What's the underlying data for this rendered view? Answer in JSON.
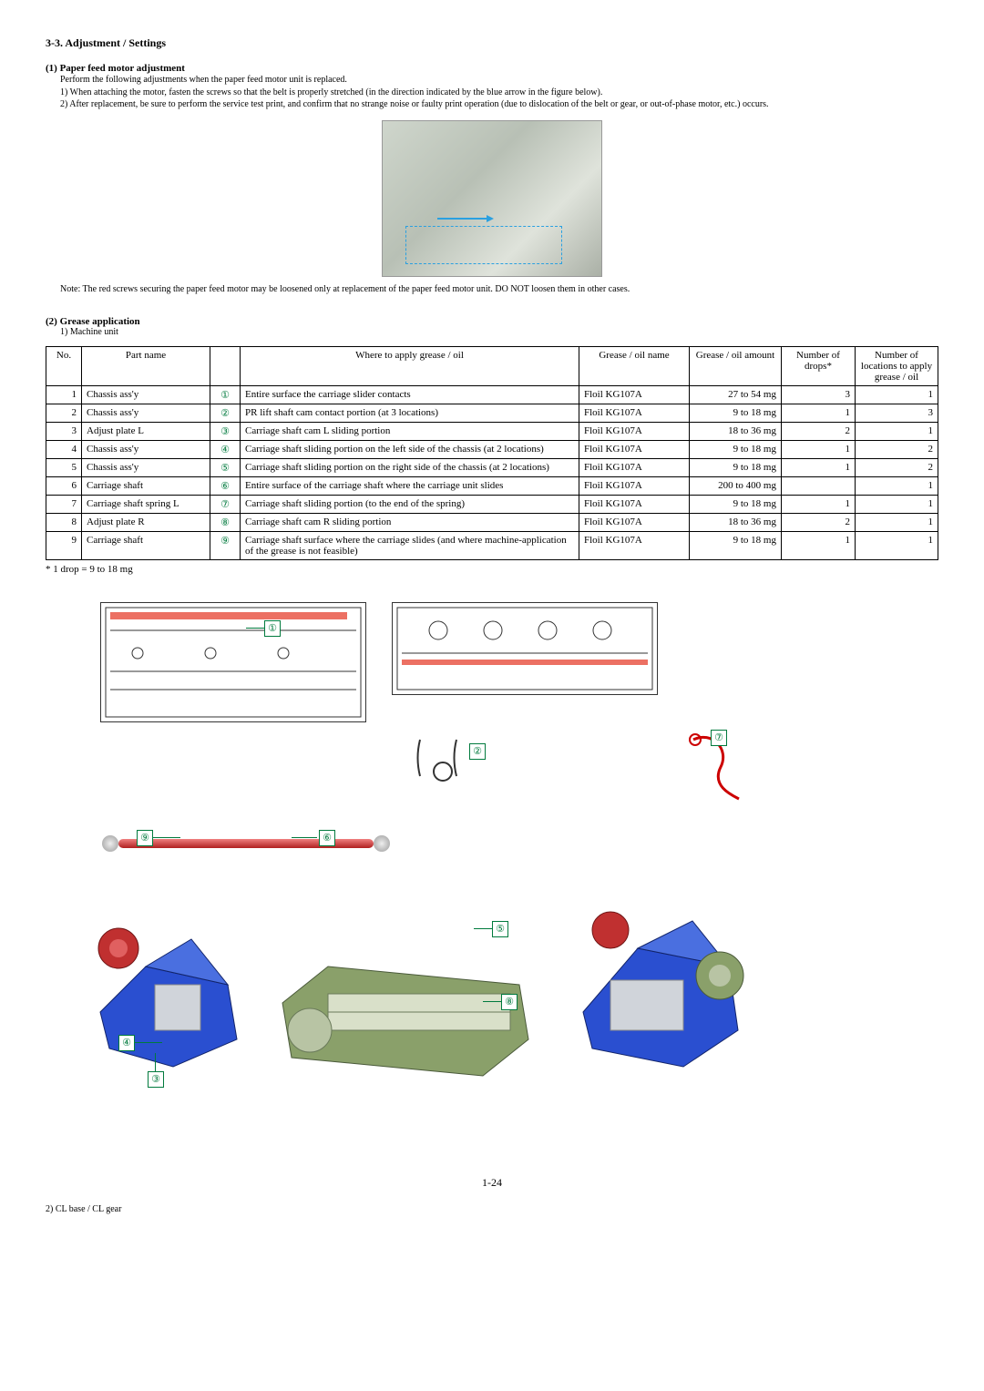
{
  "section_title": "3-3.  Adjustment / Settings",
  "sub1": {
    "title": "(1)  Paper feed motor adjustment",
    "intro": "Perform the following adjustments when the paper feed motor unit is replaced.",
    "l1": "1)  When attaching the motor, fasten the screws so that the belt is properly stretched (in the direction indicated by the blue arrow in the figure below).",
    "l2": "2)  After replacement, be sure to perform the service test print, and confirm that no strange noise or faulty print operation (due to dislocation of the belt or gear, or out-of-phase motor, etc.) occurs.",
    "note": "Note:  The red screws securing the paper feed motor may be loosened only at replacement of the paper feed motor unit. DO NOT loosen them in other cases."
  },
  "sub2": {
    "title": "(2)  Grease application",
    "mini": "1)  Machine unit"
  },
  "table": {
    "headers": {
      "no": "No.",
      "part": "Part name",
      "mark": "",
      "where": "Where to apply grease / oil",
      "name": "Grease / oil name",
      "amt": "Grease / oil amount",
      "drops": "Number of drops*",
      "locs": "Number of locations to apply grease / oil"
    },
    "rows": [
      {
        "no": "1",
        "part": "Chassis ass'y",
        "mark": "①",
        "where": "Entire surface the carriage slider contacts",
        "name": "Floil KG107A",
        "amt": "27 to 54 mg",
        "drops": "3",
        "locs": "1"
      },
      {
        "no": "2",
        "part": "Chassis ass'y",
        "mark": "②",
        "where": "PR lift shaft cam contact portion (at 3 locations)",
        "name": "Floil KG107A",
        "amt": "9 to 18 mg",
        "drops": "1",
        "locs": "3"
      },
      {
        "no": "3",
        "part": "Adjust plate L",
        "mark": "③",
        "where": "Carriage shaft cam L sliding portion",
        "name": "Floil KG107A",
        "amt": "18 to 36 mg",
        "drops": "2",
        "locs": "1"
      },
      {
        "no": "4",
        "part": "Chassis ass'y",
        "mark": "④",
        "where": "Carriage shaft sliding portion on the left side of the chassis (at 2 locations)",
        "name": "Floil KG107A",
        "amt": "9 to 18 mg",
        "drops": "1",
        "locs": "2"
      },
      {
        "no": "5",
        "part": "Chassis ass'y",
        "mark": "⑤",
        "where": "Carriage shaft sliding portion on the right side of the chassis (at 2 locations)",
        "name": "Floil KG107A",
        "amt": "9 to 18 mg",
        "drops": "1",
        "locs": "2"
      },
      {
        "no": "6",
        "part": "Carriage shaft",
        "mark": "⑥",
        "where": "Entire surface of the carriage shaft where the carriage unit slides",
        "name": "Floil KG107A",
        "amt": "200 to 400 mg",
        "drops": "",
        "locs": "1"
      },
      {
        "no": "7",
        "part": "Carriage shaft spring L",
        "mark": "⑦",
        "where": "Carriage shaft sliding portion (to the end of the spring)",
        "name": "Floil KG107A",
        "amt": "9 to 18 mg",
        "drops": "1",
        "locs": "1"
      },
      {
        "no": "8",
        "part": "Adjust plate R",
        "mark": "⑧",
        "where": "Carriage shaft cam R sliding portion",
        "name": "Floil KG107A",
        "amt": "18 to 36 mg",
        "drops": "2",
        "locs": "1"
      },
      {
        "no": "9",
        "part": "Carriage shaft",
        "mark": "⑨",
        "where": "Carriage shaft surface where the carriage slides (and where machine-application of the grease is not feasible)",
        "name": "Floil KG107A",
        "amt": "9 to 18 mg",
        "drops": "1",
        "locs": "1"
      }
    ]
  },
  "footnote": "* 1 drop = 9 to 18 mg",
  "callouts": {
    "c1": "①",
    "c2": "②",
    "c3": "③",
    "c4": "④",
    "c5": "⑤",
    "c6": "⑥",
    "c7": "⑦",
    "c8": "⑧",
    "c9": "⑨"
  },
  "page_num": "1-24",
  "tail": "2)  CL base / CL gear",
  "colors": {
    "accent_green": "#007a3d",
    "shaft_red": "#c03030",
    "dashed_blue": "#2aa0e0"
  }
}
